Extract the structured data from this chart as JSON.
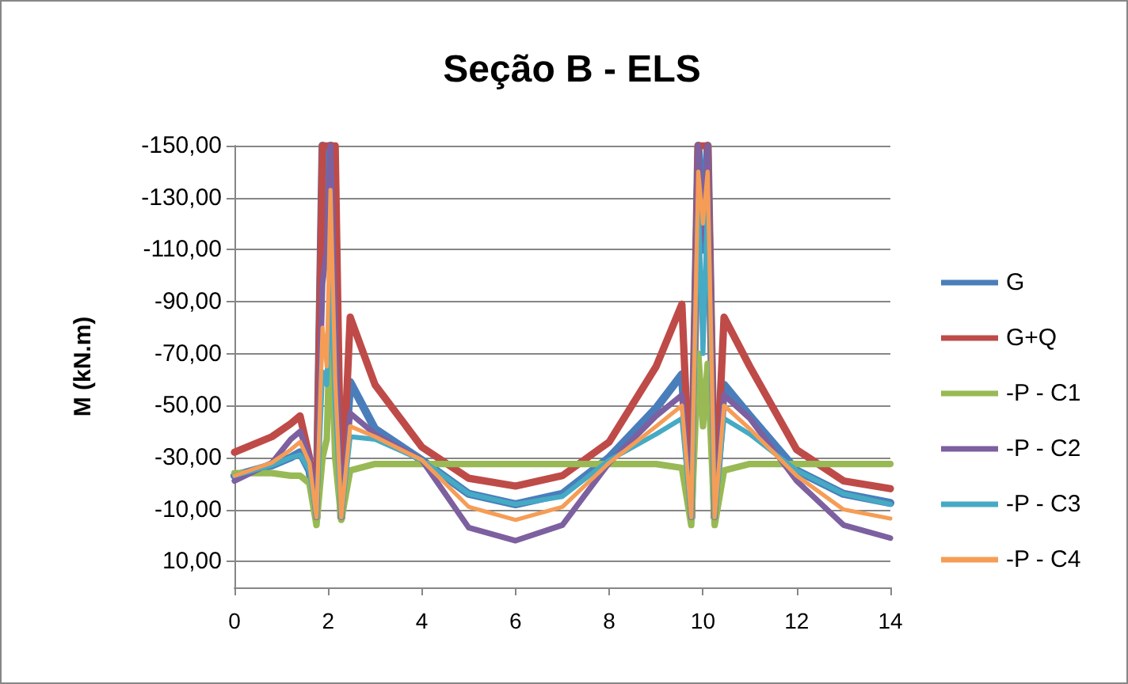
{
  "chart_data": {
    "type": "line",
    "title": "Seção B - ELS",
    "ylabel": "M (kN.m)",
    "x": [
      0,
      0.8,
      1.2,
      1.4,
      1.6,
      1.75,
      1.88,
      1.97,
      2.05,
      2.15,
      2.28,
      2.47,
      3,
      4,
      5,
      6,
      7,
      8,
      9,
      9.55,
      9.75,
      9.9,
      10,
      10.1,
      10.25,
      10.45,
      11,
      12,
      13,
      14
    ],
    "series": [
      {
        "name": "G",
        "color": "#4a7ebb",
        "values": [
          -23,
          -27,
          -30,
          -32,
          -25,
          -7,
          -150,
          -120,
          -150,
          -80,
          -7,
          -59,
          -41,
          -29,
          -16,
          -12,
          -16,
          -30,
          -49,
          -62,
          -7,
          -150,
          -110,
          -150,
          -7,
          -58,
          -46,
          -25,
          -16,
          -12.5
        ]
      },
      {
        "name": "G+Q",
        "color": "#be4b48",
        "values": [
          -32,
          -38,
          -43,
          -46,
          -30,
          -7,
          -150,
          -150,
          -150,
          -150,
          -7,
          -84,
          -58,
          -34,
          -22,
          -19,
          -23,
          -36,
          -65,
          -89,
          -7,
          -150,
          -150,
          -150,
          -7,
          -84,
          -65,
          -33,
          -21,
          -18
        ]
      },
      {
        "name": "-P - C1",
        "color": "#98b954",
        "values": [
          -24,
          -24,
          -23,
          -23,
          -20,
          -4,
          -30,
          -37,
          -85,
          -30,
          -6,
          -25,
          -27.5,
          -27.5,
          -27.5,
          -27.5,
          -27.5,
          -27.5,
          -27.5,
          -26,
          -4,
          -70,
          -42,
          -66,
          -4,
          -25,
          -27.5,
          -27.5,
          -27.5,
          -27.5
        ]
      },
      {
        "name": "-P - C2",
        "color": "#7d60a0",
        "values": [
          -21,
          -28,
          -37,
          -40,
          -30,
          -7,
          -97,
          -110,
          -150,
          -80,
          -7,
          -47,
          -39,
          -29,
          -3,
          2,
          -4,
          -28,
          -46,
          -54,
          -7,
          -150,
          -114,
          -150,
          -7,
          -54,
          -45,
          -21,
          -4,
          1
        ]
      },
      {
        "name": "-P - C3",
        "color": "#46aac5",
        "values": [
          -23,
          -27,
          -30,
          -31,
          -25,
          -7,
          -63,
          -58,
          -100,
          -50,
          -7,
          -38,
          -37,
          -29,
          -16,
          -12,
          -15,
          -29,
          -39,
          -45,
          -7,
          -130,
          -70,
          -130,
          -7,
          -45,
          -39,
          -25,
          -16,
          -12
        ]
      },
      {
        "name": "-P - C4",
        "color": "#f59d56",
        "values": [
          -23,
          -28,
          -33,
          -36,
          -28,
          -7,
          -80,
          -65,
          -133,
          -60,
          -7,
          -42,
          -38,
          -29,
          -11,
          -6,
          -11,
          -28,
          -42,
          -50,
          -7,
          -140,
          -120,
          -140,
          -7,
          -50,
          -41,
          -23,
          -10,
          -6.5
        ]
      }
    ],
    "xlim": [
      0,
      14
    ],
    "xticks": [
      0,
      2,
      4,
      6,
      8,
      10,
      12,
      14
    ],
    "ylim": [
      20,
      -150
    ],
    "yticks": [
      {
        "value": -150,
        "label": "-150,00"
      },
      {
        "value": -130,
        "label": "-130,00"
      },
      {
        "value": -110,
        "label": "-110,00"
      },
      {
        "value": -90,
        "label": "-90,00"
      },
      {
        "value": -70,
        "label": "-70,00"
      },
      {
        "value": -50,
        "label": "-50,00"
      },
      {
        "value": -30,
        "label": "-30,00"
      },
      {
        "value": -10,
        "label": "-10,00"
      },
      {
        "value": 10,
        "label": "10,00"
      }
    ],
    "grid": "y",
    "legend": "right",
    "marker": "none",
    "line_style": "solid"
  }
}
